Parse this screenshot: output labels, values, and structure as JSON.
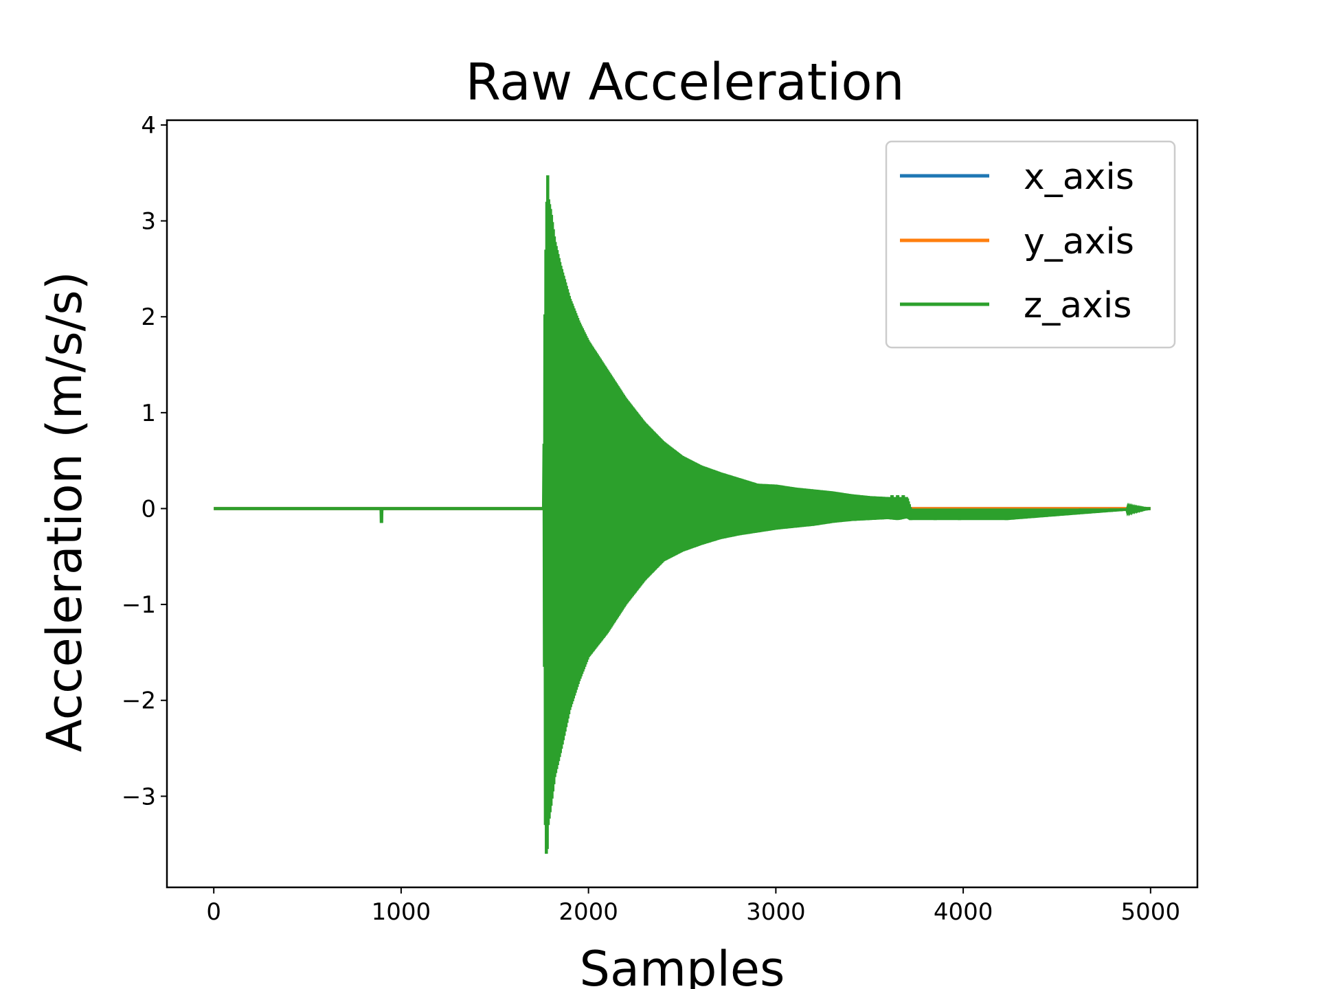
{
  "chart_data": {
    "type": "line",
    "title": "Raw Acceleration",
    "xlabel": "Samples",
    "ylabel": "Acceleration (m/s/s)",
    "xlim": [
      -250,
      5250
    ],
    "ylim": [
      -3.95,
      4.05
    ],
    "xticks": [
      0,
      1000,
      2000,
      3000,
      4000,
      5000
    ],
    "xtick_labels": [
      "0",
      "1000",
      "2000",
      "3000",
      "4000",
      "5000"
    ],
    "yticks": [
      -3,
      -2,
      -1,
      0,
      1,
      2,
      3,
      4
    ],
    "ytick_labels": [
      "−3",
      "−2",
      "−1",
      "0",
      "1",
      "2",
      "3",
      "4"
    ],
    "grid": false,
    "legend_position": "top-right",
    "series": [
      {
        "name": "x_axis",
        "color": "#1f77b4",
        "x": [
          0,
          5000
        ],
        "y": [
          0,
          0
        ]
      },
      {
        "name": "y_axis",
        "color": "#ff7f0e",
        "x": [
          0,
          5000
        ],
        "y": [
          0,
          0
        ]
      },
      {
        "name": "z_axis",
        "color": "#2ca02c",
        "x": [
          0,
          890,
          895,
          900,
          1760,
          1770,
          1775,
          1780,
          1785,
          1800,
          1820,
          1850,
          1900,
          1950,
          2000,
          2100,
          2200,
          2300,
          2400,
          2500,
          2600,
          2700,
          2800,
          2900,
          3000,
          3100,
          3200,
          3300,
          3400,
          3500,
          3600,
          3650,
          3700,
          3720,
          3850,
          3980,
          4230,
          5000
        ],
        "upper_envelope": [
          0,
          0,
          0,
          0,
          0,
          2.7,
          2.7,
          3.7,
          3.25,
          3.1,
          2.8,
          2.55,
          2.2,
          1.95,
          1.75,
          1.45,
          1.15,
          0.9,
          0.7,
          0.55,
          0.45,
          0.38,
          0.32,
          0.26,
          0.25,
          0.22,
          0.2,
          0.18,
          0.15,
          0.13,
          0.12,
          0.12,
          0.12,
          0,
          0,
          0,
          0,
          0
        ],
        "lower_envelope": [
          0,
          0,
          -0.15,
          0,
          0,
          -3.3,
          -3.6,
          -3.55,
          -3.3,
          -3.1,
          -2.8,
          -2.55,
          -2.1,
          -1.8,
          -1.55,
          -1.3,
          -1.0,
          -0.75,
          -0.55,
          -0.45,
          -0.38,
          -0.32,
          -0.28,
          -0.25,
          -0.22,
          -0.2,
          -0.18,
          -0.15,
          -0.13,
          -0.12,
          -0.11,
          -0.12,
          -0.1,
          -0.12,
          -0.12,
          -0.12,
          -0.12,
          0
        ]
      }
    ]
  }
}
